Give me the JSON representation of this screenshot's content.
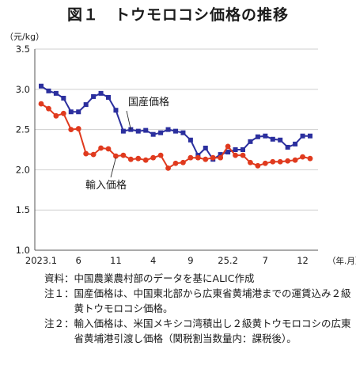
{
  "chart_data": {
    "type": "line",
    "title": "図１　トウモロコシ価格の推移",
    "ylabel": "（元/kg）",
    "xlabel": "（年.月）",
    "ylim": [
      1.0,
      3.5
    ],
    "yticks": [
      "1.0",
      "1.5",
      "2.0",
      "2.5",
      "3.0",
      "3.5"
    ],
    "xtick_labels": [
      {
        "index": 0,
        "label": "2023.1"
      },
      {
        "index": 5,
        "label": "6"
      },
      {
        "index": 10,
        "label": "11"
      },
      {
        "index": 15,
        "label": "4"
      },
      {
        "index": 20,
        "label": "9"
      },
      {
        "index": 25,
        "label": "25.2"
      },
      {
        "index": 30,
        "label": "7"
      },
      {
        "index": 35,
        "label": "12"
      }
    ],
    "grid": true,
    "series": [
      {
        "name": "国産価格",
        "color": "#2b2f9e",
        "marker": "square",
        "values": [
          3.04,
          2.98,
          2.95,
          2.89,
          2.72,
          2.72,
          2.81,
          2.91,
          2.95,
          2.9,
          2.74,
          2.48,
          2.5,
          2.48,
          2.49,
          2.44,
          2.46,
          2.5,
          2.48,
          2.46,
          2.37,
          2.18,
          2.27,
          2.13,
          2.19,
          2.22,
          2.25,
          2.25,
          2.35,
          2.41,
          2.42,
          2.38,
          2.37,
          2.28,
          2.32,
          2.42,
          2.42
        ]
      },
      {
        "name": "輸入価格",
        "color": "#e03a1e",
        "marker": "circle",
        "values": [
          2.82,
          2.76,
          2.67,
          2.7,
          2.5,
          2.51,
          2.2,
          2.19,
          2.27,
          2.26,
          2.17,
          2.18,
          2.13,
          2.14,
          2.12,
          2.15,
          2.18,
          2.02,
          2.08,
          2.09,
          2.15,
          2.15,
          2.13,
          2.15,
          2.15,
          2.29,
          2.18,
          2.18,
          2.09,
          2.05,
          2.08,
          2.1,
          2.1,
          2.11,
          2.12,
          2.16,
          2.14
        ]
      }
    ]
  },
  "notes": [
    {
      "head": "資料：",
      "body": "中国農業農村部のデータを基にALIC作成"
    },
    {
      "head": "注１：",
      "body": "国産価格は、中国東北部から広東省黄埔港までの運賃込み２級黄トウモロコシ価格。"
    },
    {
      "head": "注２：",
      "body": "輸入価格は、米国メキシコ湾積出し２級黄トウモロコシの広東省黄埔港引渡し価格（関税割当数量内：課税後）。"
    }
  ]
}
